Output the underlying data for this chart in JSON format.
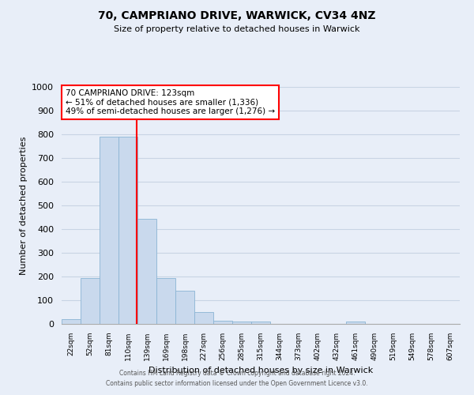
{
  "title1": "70, CAMPRIANO DRIVE, WARWICK, CV34 4NZ",
  "title2": "Size of property relative to detached houses in Warwick",
  "xlabel": "Distribution of detached houses by size in Warwick",
  "ylabel": "Number of detached properties",
  "categories": [
    "22sqm",
    "52sqm",
    "81sqm",
    "110sqm",
    "139sqm",
    "169sqm",
    "198sqm",
    "227sqm",
    "256sqm",
    "285sqm",
    "315sqm",
    "344sqm",
    "373sqm",
    "402sqm",
    "432sqm",
    "461sqm",
    "490sqm",
    "519sqm",
    "549sqm",
    "578sqm",
    "607sqm"
  ],
  "values": [
    20,
    195,
    790,
    790,
    445,
    195,
    140,
    50,
    15,
    10,
    10,
    0,
    0,
    0,
    0,
    10,
    0,
    0,
    0,
    0,
    0
  ],
  "bar_color": "#c9d9ed",
  "bar_edge_color": "#8ab4d4",
  "bar_width": 1.0,
  "ylim": [
    0,
    1000
  ],
  "yticks": [
    0,
    100,
    200,
    300,
    400,
    500,
    600,
    700,
    800,
    900,
    1000
  ],
  "property_line_color": "red",
  "annotation_text": "70 CAMPRIANO DRIVE: 123sqm\n← 51% of detached houses are smaller (1,336)\n49% of semi-detached houses are larger (1,276) →",
  "annotation_box_color": "white",
  "annotation_box_edge_color": "red",
  "footer1": "Contains HM Land Registry data © Crown copyright and database right 2024.",
  "footer2": "Contains public sector information licensed under the Open Government Licence v3.0.",
  "grid_color": "#c8d4e4",
  "background_color": "#e8eef8"
}
